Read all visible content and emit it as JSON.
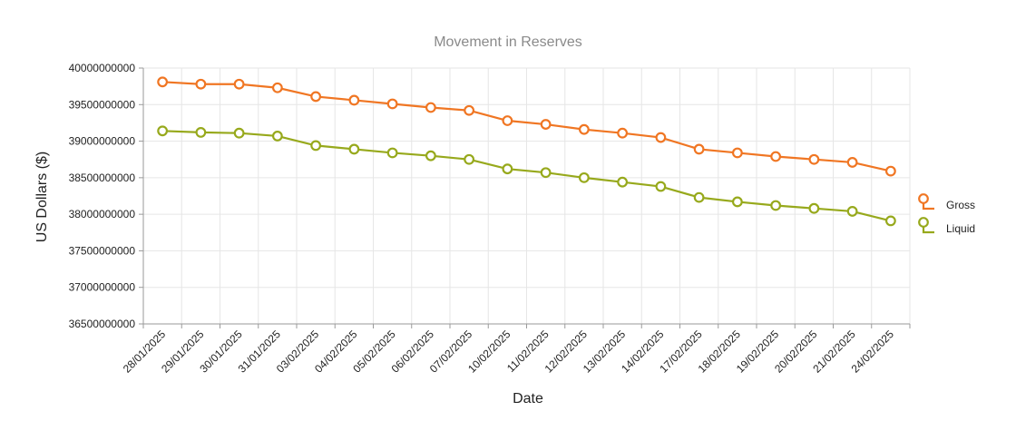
{
  "chart_data": {
    "type": "line",
    "title": "Movement in Reserves",
    "xlabel": "Date",
    "ylabel": "US Dollars ($)",
    "ylim": [
      36500000000,
      40000000000
    ],
    "yticks": [
      36500000000,
      37000000000,
      37500000000,
      38000000000,
      38500000000,
      39000000000,
      39500000000,
      40000000000
    ],
    "ytick_labels": [
      "36500000000",
      "37000000000",
      "37500000000",
      "38000000000",
      "38500000000",
      "39000000000",
      "39500000000",
      "40000000000"
    ],
    "grid": true,
    "legend_position": "right",
    "categories": [
      "28/01/2025",
      "29/01/2025",
      "30/01/2025",
      "31/01/2025",
      "03/02/2025",
      "04/02/2025",
      "05/02/2025",
      "06/02/2025",
      "07/02/2025",
      "10/02/2025",
      "11/02/2025",
      "12/02/2025",
      "13/02/2025",
      "14/02/2025",
      "17/02/2025",
      "18/02/2025",
      "19/02/2025",
      "20/02/2025",
      "21/02/2025",
      "24/02/2025"
    ],
    "series": [
      {
        "name": "Gross",
        "color": "#f07623",
        "values": [
          39810000000,
          39780000000,
          39780000000,
          39730000000,
          39610000000,
          39560000000,
          39510000000,
          39460000000,
          39420000000,
          39280000000,
          39230000000,
          39160000000,
          39110000000,
          39050000000,
          38890000000,
          38840000000,
          38790000000,
          38750000000,
          38710000000,
          38590000000
        ]
      },
      {
        "name": "Liquid",
        "color": "#97a91c",
        "values": [
          39140000000,
          39120000000,
          39110000000,
          39070000000,
          38940000000,
          38890000000,
          38840000000,
          38800000000,
          38750000000,
          38620000000,
          38570000000,
          38500000000,
          38440000000,
          38380000000,
          38230000000,
          38170000000,
          38120000000,
          38080000000,
          38040000000,
          37910000000
        ]
      }
    ]
  }
}
